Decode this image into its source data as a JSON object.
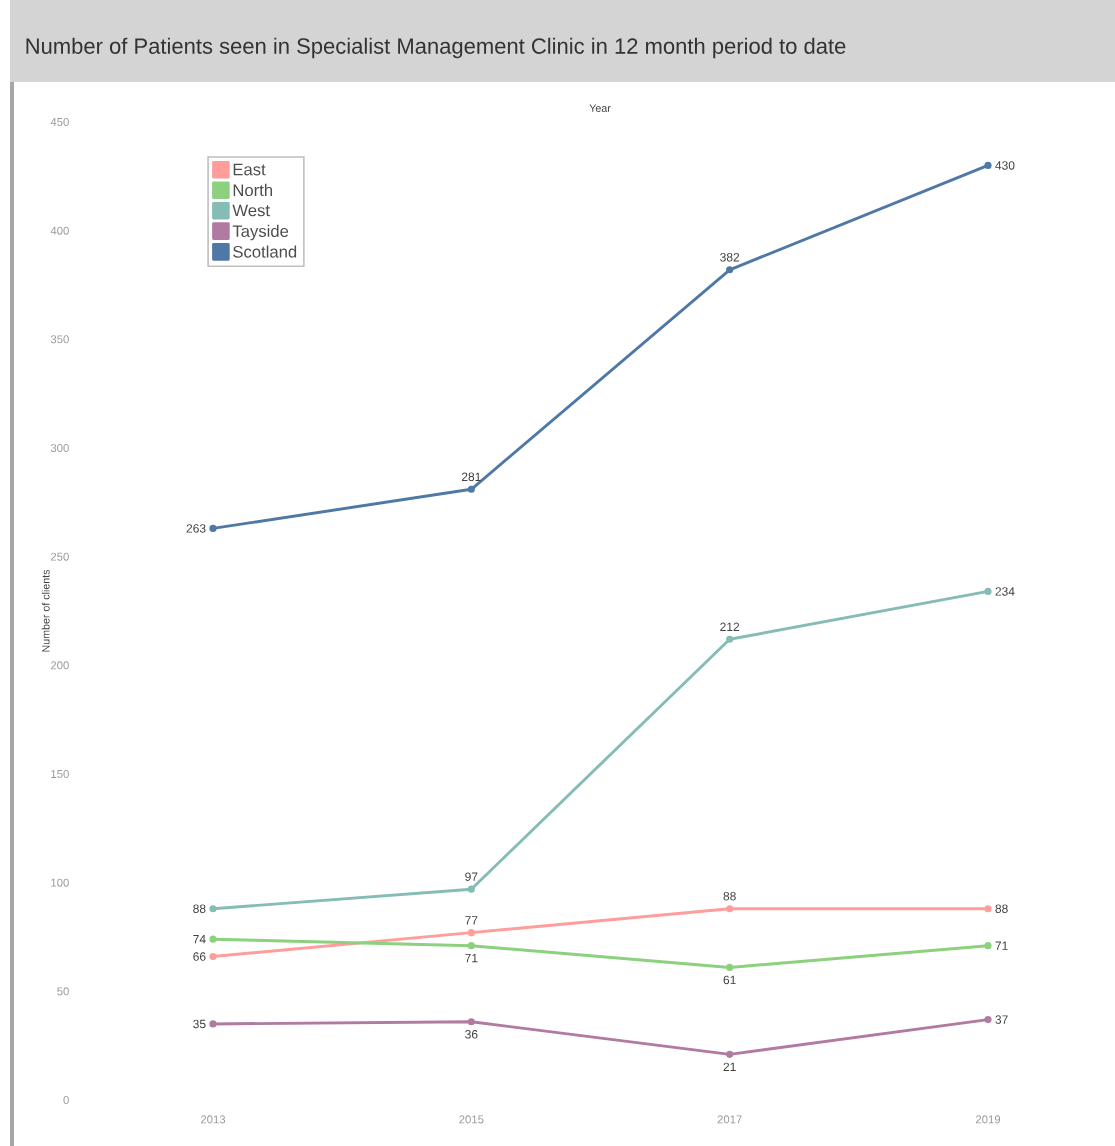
{
  "chart_data": {
    "type": "line",
    "title": "Number of Patients seen in Specialist Management Clinic in 12 month period to date",
    "xlabel": "Year",
    "ylabel": "Number of clients",
    "categories": [
      "2013",
      "2015",
      "2017",
      "2019"
    ],
    "series": [
      {
        "name": "East",
        "color": "#ff9d9a",
        "values": [
          66,
          77,
          88,
          88
        ]
      },
      {
        "name": "North",
        "color": "#8cd17d",
        "values": [
          74,
          71,
          61,
          71
        ]
      },
      {
        "name": "West",
        "color": "#86bcb6",
        "values": [
          88,
          97,
          212,
          234
        ]
      },
      {
        "name": "Tayside",
        "color": "#b07aa1",
        "values": [
          35,
          36,
          21,
          37
        ]
      },
      {
        "name": "Scotland",
        "color": "#4e79a7",
        "values": [
          263,
          281,
          382,
          430
        ]
      }
    ],
    "ylim": [
      0,
      450
    ],
    "yticks": [
      0,
      50,
      100,
      150,
      200,
      250,
      300,
      350,
      400,
      450
    ],
    "legend": "top left",
    "marker": "circle",
    "line_style": "solid",
    "grid": false,
    "data_labels": true
  }
}
